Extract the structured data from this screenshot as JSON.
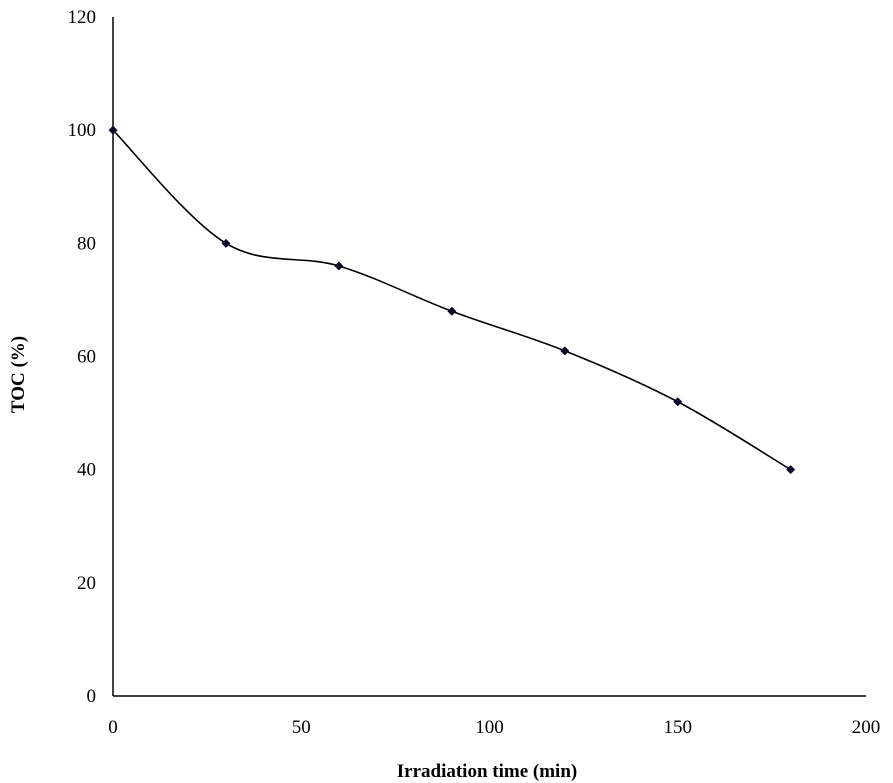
{
  "chart_data": {
    "type": "line",
    "title": "",
    "xlabel": "Irradiation time (min)",
    "ylabel": "TOC (%)",
    "xlim": [
      0,
      200
    ],
    "ylim": [
      0,
      120
    ],
    "x_ticks": [
      "0",
      "50",
      "100",
      "150",
      "200"
    ],
    "y_ticks": [
      "0",
      "20",
      "40",
      "60",
      "80",
      "100",
      "120"
    ],
    "grid": false,
    "legend": "none",
    "smooth": true,
    "series": [
      {
        "x": [
          0,
          30,
          60,
          90,
          120,
          150,
          180
        ],
        "y": [
          100,
          80,
          76,
          68,
          61,
          52,
          40
        ],
        "color": "#000000",
        "marker": "diamond",
        "marker_color": "#0a0a2a"
      }
    ]
  }
}
